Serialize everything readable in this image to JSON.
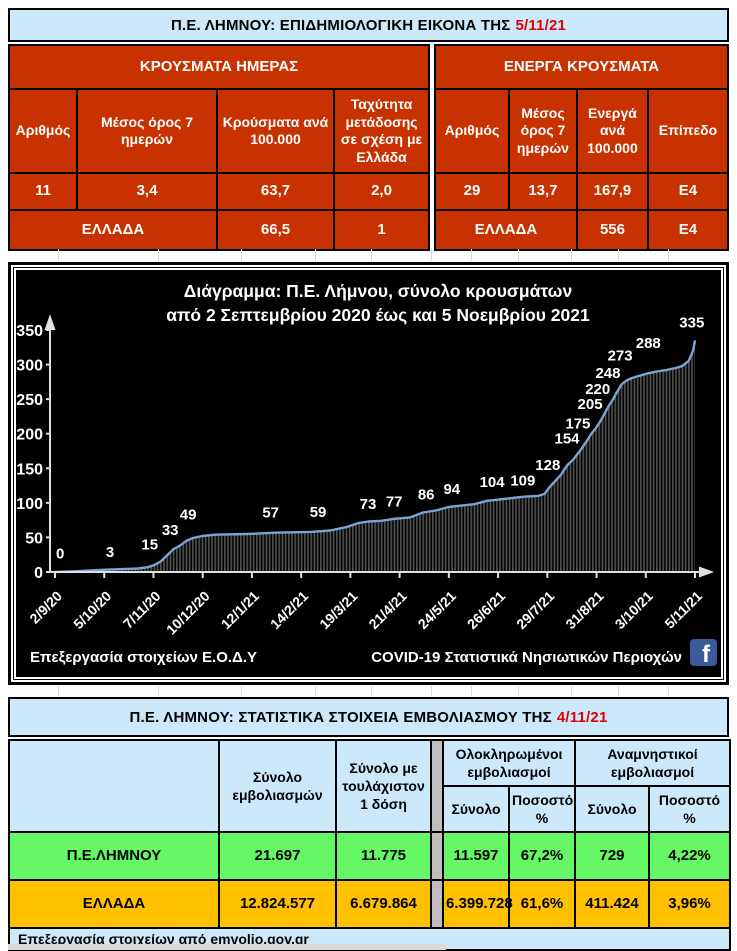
{
  "epi_table": {
    "title_prefix": "Π.Ε. ΛΗΜΝΟΥ: ΕΠΙΔΗΜΙΟΛΟΓΙΚΗ ΕΙΚΟΝΑ ΤΗΣ",
    "title_date": "5/11/21",
    "left": {
      "header": "ΚΡΟΥΣΜΑΤΑ ΗΜΕΡΑΣ",
      "columns": [
        "Αριθμός",
        "Μέσος όρος 7 ημερών",
        "Κρούσματα ανά 100.000",
        "Ταχύτητα μετάδοσης σε σχέση με Ελλάδα"
      ],
      "row": [
        "11",
        "3,4",
        "63,7",
        "2,0"
      ],
      "greece_label": "ΕΛΛΑΔΑ",
      "greece_row": [
        "66,5",
        "1"
      ]
    },
    "right": {
      "header": "ΕΝΕΡΓΑ ΚΡΟΥΣΜΑΤΑ",
      "columns": [
        "Αριθμός",
        "Μέσος όρος 7 ημερών",
        "Ενεργά ανά 100.000",
        "Επίπεδο"
      ],
      "row": [
        "29",
        "13,7",
        "167,9",
        "Ε4"
      ],
      "greece_label": "ΕΛΛΑΔΑ",
      "greece_row": [
        "556",
        "Ε4"
      ]
    }
  },
  "chart_data": {
    "type": "area",
    "title_line1": "Διάγραμμα:  Π.Ε. Λήμνου, σύνολο κρουσμάτων",
    "title_line2": "από 2 Σεπτεμβρίου 2020 έως και 5 Νοεμβρίου 2021",
    "ylim": [
      0,
      350
    ],
    "y_ticks": [
      0,
      50,
      100,
      150,
      200,
      250,
      300,
      350
    ],
    "x_ticks": [
      "2/9/20",
      "5/10/20",
      "7/11/20",
      "10/12/20",
      "12/1/21",
      "14/2/21",
      "19/3/21",
      "21/4/21",
      "24/5/21",
      "26/6/21",
      "29/7/21",
      "31/8/21",
      "3/10/21",
      "5/11/21"
    ],
    "labeled_points": [
      {
        "t": "0",
        "fx": 0.008,
        "ly": 14
      },
      {
        "t": "3",
        "fx": 0.086,
        "ly": 16
      },
      {
        "t": "15",
        "fx": 0.148,
        "ly": 27
      },
      {
        "t": "33",
        "fx": 0.18,
        "ly": 48
      },
      {
        "t": "49",
        "fx": 0.208,
        "ly": 70
      },
      {
        "t": "57",
        "fx": 0.337,
        "ly": 73
      },
      {
        "t": "59",
        "fx": 0.411,
        "ly": 74
      },
      {
        "t": "73",
        "fx": 0.489,
        "ly": 85
      },
      {
        "t": "77",
        "fx": 0.53,
        "ly": 89
      },
      {
        "t": "86",
        "fx": 0.58,
        "ly": 99
      },
      {
        "t": "94",
        "fx": 0.62,
        "ly": 107
      },
      {
        "t": "104",
        "fx": 0.683,
        "ly": 117
      },
      {
        "t": "109",
        "fx": 0.731,
        "ly": 119
      },
      {
        "t": "128",
        "fx": 0.77,
        "ly": 142
      },
      {
        "t": "154",
        "fx": 0.8,
        "ly": 180
      },
      {
        "t": "175",
        "fx": 0.817,
        "ly": 202
      },
      {
        "t": "205",
        "fx": 0.836,
        "ly": 230
      },
      {
        "t": "220",
        "fx": 0.848,
        "ly": 252
      },
      {
        "t": "248",
        "fx": 0.864,
        "ly": 275
      },
      {
        "t": "273",
        "fx": 0.883,
        "ly": 300
      },
      {
        "t": "288",
        "fx": 0.927,
        "ly": 318
      },
      {
        "t": "335",
        "fx": 0.995,
        "ly": 348
      }
    ],
    "anchors": [
      [
        0,
        0
      ],
      [
        0.03,
        1
      ],
      [
        0.07,
        3
      ],
      [
        0.1,
        4
      ],
      [
        0.13,
        5
      ],
      [
        0.145,
        7
      ],
      [
        0.155,
        10
      ],
      [
        0.165,
        15
      ],
      [
        0.175,
        24
      ],
      [
        0.185,
        33
      ],
      [
        0.195,
        38
      ],
      [
        0.205,
        45
      ],
      [
        0.215,
        49
      ],
      [
        0.23,
        52
      ],
      [
        0.25,
        54
      ],
      [
        0.3,
        55
      ],
      [
        0.35,
        57
      ],
      [
        0.4,
        58
      ],
      [
        0.43,
        60
      ],
      [
        0.455,
        65
      ],
      [
        0.475,
        71
      ],
      [
        0.49,
        73
      ],
      [
        0.51,
        74
      ],
      [
        0.53,
        77
      ],
      [
        0.555,
        79
      ],
      [
        0.575,
        86
      ],
      [
        0.595,
        89
      ],
      [
        0.615,
        94
      ],
      [
        0.635,
        96
      ],
      [
        0.655,
        98
      ],
      [
        0.675,
        103
      ],
      [
        0.695,
        105
      ],
      [
        0.715,
        107
      ],
      [
        0.735,
        109
      ],
      [
        0.755,
        110
      ],
      [
        0.765,
        113
      ],
      [
        0.772,
        122
      ],
      [
        0.778,
        128
      ],
      [
        0.79,
        140
      ],
      [
        0.8,
        154
      ],
      [
        0.81,
        163
      ],
      [
        0.82,
        175
      ],
      [
        0.83,
        188
      ],
      [
        0.838,
        200
      ],
      [
        0.845,
        208
      ],
      [
        0.852,
        218
      ],
      [
        0.858,
        228
      ],
      [
        0.865,
        240
      ],
      [
        0.872,
        250
      ],
      [
        0.878,
        260
      ],
      [
        0.885,
        271
      ],
      [
        0.893,
        277
      ],
      [
        0.9,
        280
      ],
      [
        0.91,
        283
      ],
      [
        0.925,
        287
      ],
      [
        0.94,
        290
      ],
      [
        0.955,
        292
      ],
      [
        0.97,
        295
      ],
      [
        0.98,
        298
      ],
      [
        0.99,
        305
      ],
      [
        0.997,
        320
      ],
      [
        1.0,
        335
      ]
    ],
    "footer_left": "Επεξεργασία στοιχείων Ε.Ο.Δ.Υ",
    "footer_right": "COVID-19 Στατιστικά Νησιωτικών Περιοχών",
    "facebook_letter": "f",
    "line_color": "#7ba3d4",
    "hatch_color": "#4e4e4e",
    "axis_color": "#e0e0e0",
    "facebook_color": "#3c5a99"
  },
  "vax_table": {
    "title_prefix": "Π.Ε. ΛΗΜΝΟΥ: ΣΤΑΤΙΣΤΙΚΑ ΣΤΟΙΧΕΙΑ ΕΜΒΟΛΙΑΣΜΟΥ ΤΗΣ",
    "title_date": "4/11/21",
    "col_total": "Σύνολο εμβολιασμών",
    "col_first_dose": "Σύνολο με τουλάχιστον 1 δόση",
    "group_completed": "Ολοκληρωμένοι εμβολιασμοί",
    "group_booster": "Αναμνηστικοί εμβολιασμοί",
    "sub_total": "Σύνολο",
    "sub_pct": "Ποσοστό %",
    "rows": [
      {
        "name": "Π.Ε.ΛΗΜΝΟΥ",
        "total": "21.697",
        "first": "11.775",
        "comp_total": "11.597",
        "comp_pct": "67,2%",
        "boost_total": "729",
        "boost_pct": "4,22%"
      },
      {
        "name": "ΕΛΛΑΔΑ",
        "total": "12.824.577",
        "first": "6.679.864",
        "comp_total": "6.399.728",
        "comp_pct": "61,6%",
        "boost_total": "411.424",
        "boost_pct": "3,96%"
      }
    ],
    "footer": "Επεξεργασία στοιχείων από  emvolio.gov.gr"
  },
  "colors": {
    "red_cell": "#c83200",
    "light_blue": "#cbe9fa",
    "green_row": "#66f766",
    "gold_row": "#ffc000",
    "gray_sep": "#bfbfbf",
    "date_red": "#e00000"
  }
}
